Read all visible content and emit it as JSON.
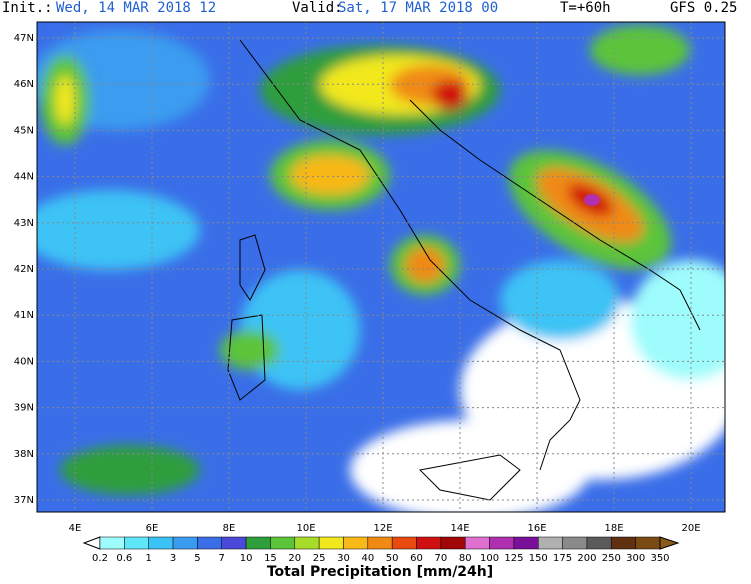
{
  "header": {
    "init_label": "Init.:",
    "init": "Wed, 14 MAR 2018  12",
    "valid_label": "Valid:",
    "valid": "Sat, 17 MAR 2018  00",
    "step": "T=+60h",
    "model": "GFS 0.25"
  },
  "lat_ticks": [
    "47N",
    "46N",
    "45N",
    "44N",
    "43N",
    "42N",
    "41N",
    "40N",
    "39N",
    "38N",
    "37N"
  ],
  "lon_ticks": [
    "4E",
    "6E",
    "8E",
    "10E",
    "12E",
    "14E",
    "16E",
    "18E",
    "20E"
  ],
  "colorbar": {
    "title": "Total Precipitation [mm/24h]",
    "levels": [
      "0.2",
      "0.6",
      "1",
      "3",
      "5",
      "7",
      "10",
      "15",
      "20",
      "25",
      "30",
      "40",
      "50",
      "60",
      "70",
      "80",
      "100",
      "125",
      "150",
      "175",
      "200",
      "250",
      "300",
      "350"
    ],
    "colors": [
      "#9ffcfc",
      "#5fe6f8",
      "#3cc3f5",
      "#3a9cf0",
      "#3a6ee8",
      "#4a48d8",
      "#2f9e3c",
      "#5cc43a",
      "#a6dc2a",
      "#f2e81e",
      "#f8b818",
      "#f08a12",
      "#e84a10",
      "#d01010",
      "#a00808",
      "#e070d0",
      "#b030b0",
      "#7a109a",
      "#b0b0b0",
      "#8a8a8a",
      "#5a5a5a",
      "#603010",
      "#7a4a14"
    ],
    "under_color": "#ffffff",
    "over_color": "#8a5a1a"
  }
}
